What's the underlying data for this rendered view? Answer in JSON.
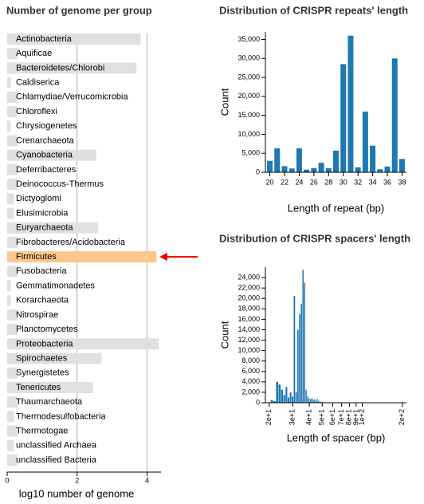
{
  "chart_data": [
    {
      "type": "hbar",
      "title": "Number of genome per group",
      "xlabel": "log10 number of genome",
      "categories": [
        "Actinobacteria",
        "Aquificae",
        "Bacteroidetes/Chlorobi",
        "Caldiserica",
        "Chlamydiae/Verrucomicrobia",
        "Chloroflexi",
        "Chrysiogenetes",
        "Crenarchaeota",
        "Cyanobacteria",
        "Deferribacteres",
        "Deinococcus-Thermus",
        "Dictyoglomi",
        "Elusimicrobia",
        "Euryarchaeota",
        "Fibrobacteres/Acidobacteria",
        "Firmicutes",
        "Fusobacteria",
        "Gemmatimonadetes",
        "Korarchaeota",
        "Nitrospirae",
        "Planctomycetes",
        "Proteobacteria",
        "Spirochaetes",
        "Synergistetes",
        "Tenericutes",
        "Thaumarchaeota",
        "Thermodesulfobacteria",
        "Thermotogae",
        "unclassified Archaea",
        "unclassified Bacteria"
      ],
      "values": [
        3.82,
        0.3,
        3.7,
        0.1,
        0.3,
        0.3,
        0.1,
        0.3,
        2.55,
        0.3,
        0.3,
        0.2,
        0.2,
        2.6,
        0.3,
        4.27,
        0.3,
        0.1,
        0.1,
        0.3,
        0.3,
        4.34,
        2.7,
        0.3,
        2.45,
        0.3,
        0.2,
        0.3,
        0.2,
        0.3
      ],
      "colors": [
        "#e0e0e0",
        "#e0e0e0",
        "#e0e0e0",
        "#e0e0e0",
        "#e0e0e0",
        "#e0e0e0",
        "#e0e0e0",
        "#e0e0e0",
        "#e0e0e0",
        "#e0e0e0",
        "#e0e0e0",
        "#e0e0e0",
        "#e0e0e0",
        "#e0e0e0",
        "#e0e0e0",
        "#fcc68c",
        "#e0e0e0",
        "#e0e0e0",
        "#e0e0e0",
        "#e0e0e0",
        "#e0e0e0",
        "#e0e0e0",
        "#e0e0e0",
        "#e0e0e0",
        "#e0e0e0",
        "#e0e0e0",
        "#e0e0e0",
        "#e0e0e0",
        "#e0e0e0",
        "#e0e0e0"
      ],
      "xlim": [
        0,
        4.4
      ],
      "xticks": [
        0,
        2,
        4
      ],
      "grid": true
    },
    {
      "type": "bar",
      "title": "Distribution of CRISPR repeats' length",
      "xlabel": "Length of repeat (bp)",
      "ylabel": "Count",
      "x": [
        20,
        21,
        22,
        23,
        24,
        25,
        26,
        27,
        28,
        29,
        30,
        31,
        32,
        33,
        34,
        35,
        36,
        37,
        38
      ],
      "values": [
        3000,
        6300,
        1600,
        1000,
        6300,
        700,
        1100,
        2500,
        1100,
        5700,
        28500,
        36000,
        1300,
        16000,
        7000,
        800,
        1500,
        30000,
        3500
      ],
      "color": "#1f77b4",
      "xlim": [
        19.4,
        38.6
      ],
      "xticks": [
        20,
        22,
        24,
        26,
        28,
        30,
        32,
        34,
        36,
        38
      ],
      "ylim": [
        0,
        37000
      ],
      "yticks": [
        0,
        {
          "value": 5000,
          "label": "5,000"
        },
        {
          "value": 10000,
          "label": "10,000"
        },
        {
          "value": 15000,
          "label": "15,000"
        },
        {
          "value": 20000,
          "label": "20,000"
        },
        {
          "value": 25000,
          "label": "25,000"
        },
        {
          "value": 30000,
          "label": "30,000"
        },
        {
          "value": 35000,
          "label": "35,000"
        }
      ]
    },
    {
      "type": "bar",
      "title": "Distribution of CRISPR spacers' length",
      "xlabel": "Length of spacer (bp)",
      "ylabel": "Count",
      "xscale": "log",
      "x": [
        21,
        22,
        23,
        24,
        25,
        26,
        27,
        28,
        29,
        30,
        31,
        32,
        33,
        34,
        35,
        36,
        37,
        38,
        39,
        40,
        41,
        42,
        43,
        44,
        45,
        46,
        47,
        48,
        49,
        50,
        52,
        55,
        60
      ],
      "values": [
        500,
        300,
        4000,
        3500,
        2500,
        1500,
        3000,
        1000,
        2000,
        1200,
        20500,
        2000,
        14000,
        17000,
        19000,
        25500,
        23000,
        2500,
        1200,
        800,
        700,
        900,
        600,
        700,
        400,
        800,
        400,
        300,
        200,
        150,
        100,
        80,
        50
      ],
      "color": "#1f77b4",
      "xlim": [
        18.7,
        215
      ],
      "xticks": [
        {
          "value": 20,
          "label": "2e+1"
        },
        {
          "value": 30,
          "label": "3e+1"
        },
        {
          "value": 40,
          "label": "4e+1"
        },
        {
          "value": 50,
          "label": "5e+1"
        },
        {
          "value": 60,
          "label": "6e+1"
        },
        {
          "value": 70,
          "label": "7e+1"
        },
        {
          "value": 80,
          "label": "8e+1"
        },
        {
          "value": 90,
          "label": "9e+1"
        },
        {
          "value": 100,
          "label": "1e+2"
        },
        {
          "value": 200,
          "label": "2e+2"
        }
      ],
      "ylim": [
        0,
        26000
      ],
      "yticks": [
        0,
        {
          "value": 2000,
          "label": "2,000"
        },
        {
          "value": 4000,
          "label": "4,000"
        },
        {
          "value": 6000,
          "label": "6,000"
        },
        {
          "value": 8000,
          "label": "8,000"
        },
        {
          "value": 10000,
          "label": "10,000"
        },
        {
          "value": 12000,
          "label": "12,000"
        },
        {
          "value": 14000,
          "label": "14,000"
        },
        {
          "value": 16000,
          "label": "16,000"
        },
        {
          "value": 18000,
          "label": "18,000"
        },
        {
          "value": 20000,
          "label": "20,000"
        },
        {
          "value": 22000,
          "label": "22,000"
        },
        {
          "value": 24000,
          "label": "24,000"
        }
      ]
    }
  ]
}
